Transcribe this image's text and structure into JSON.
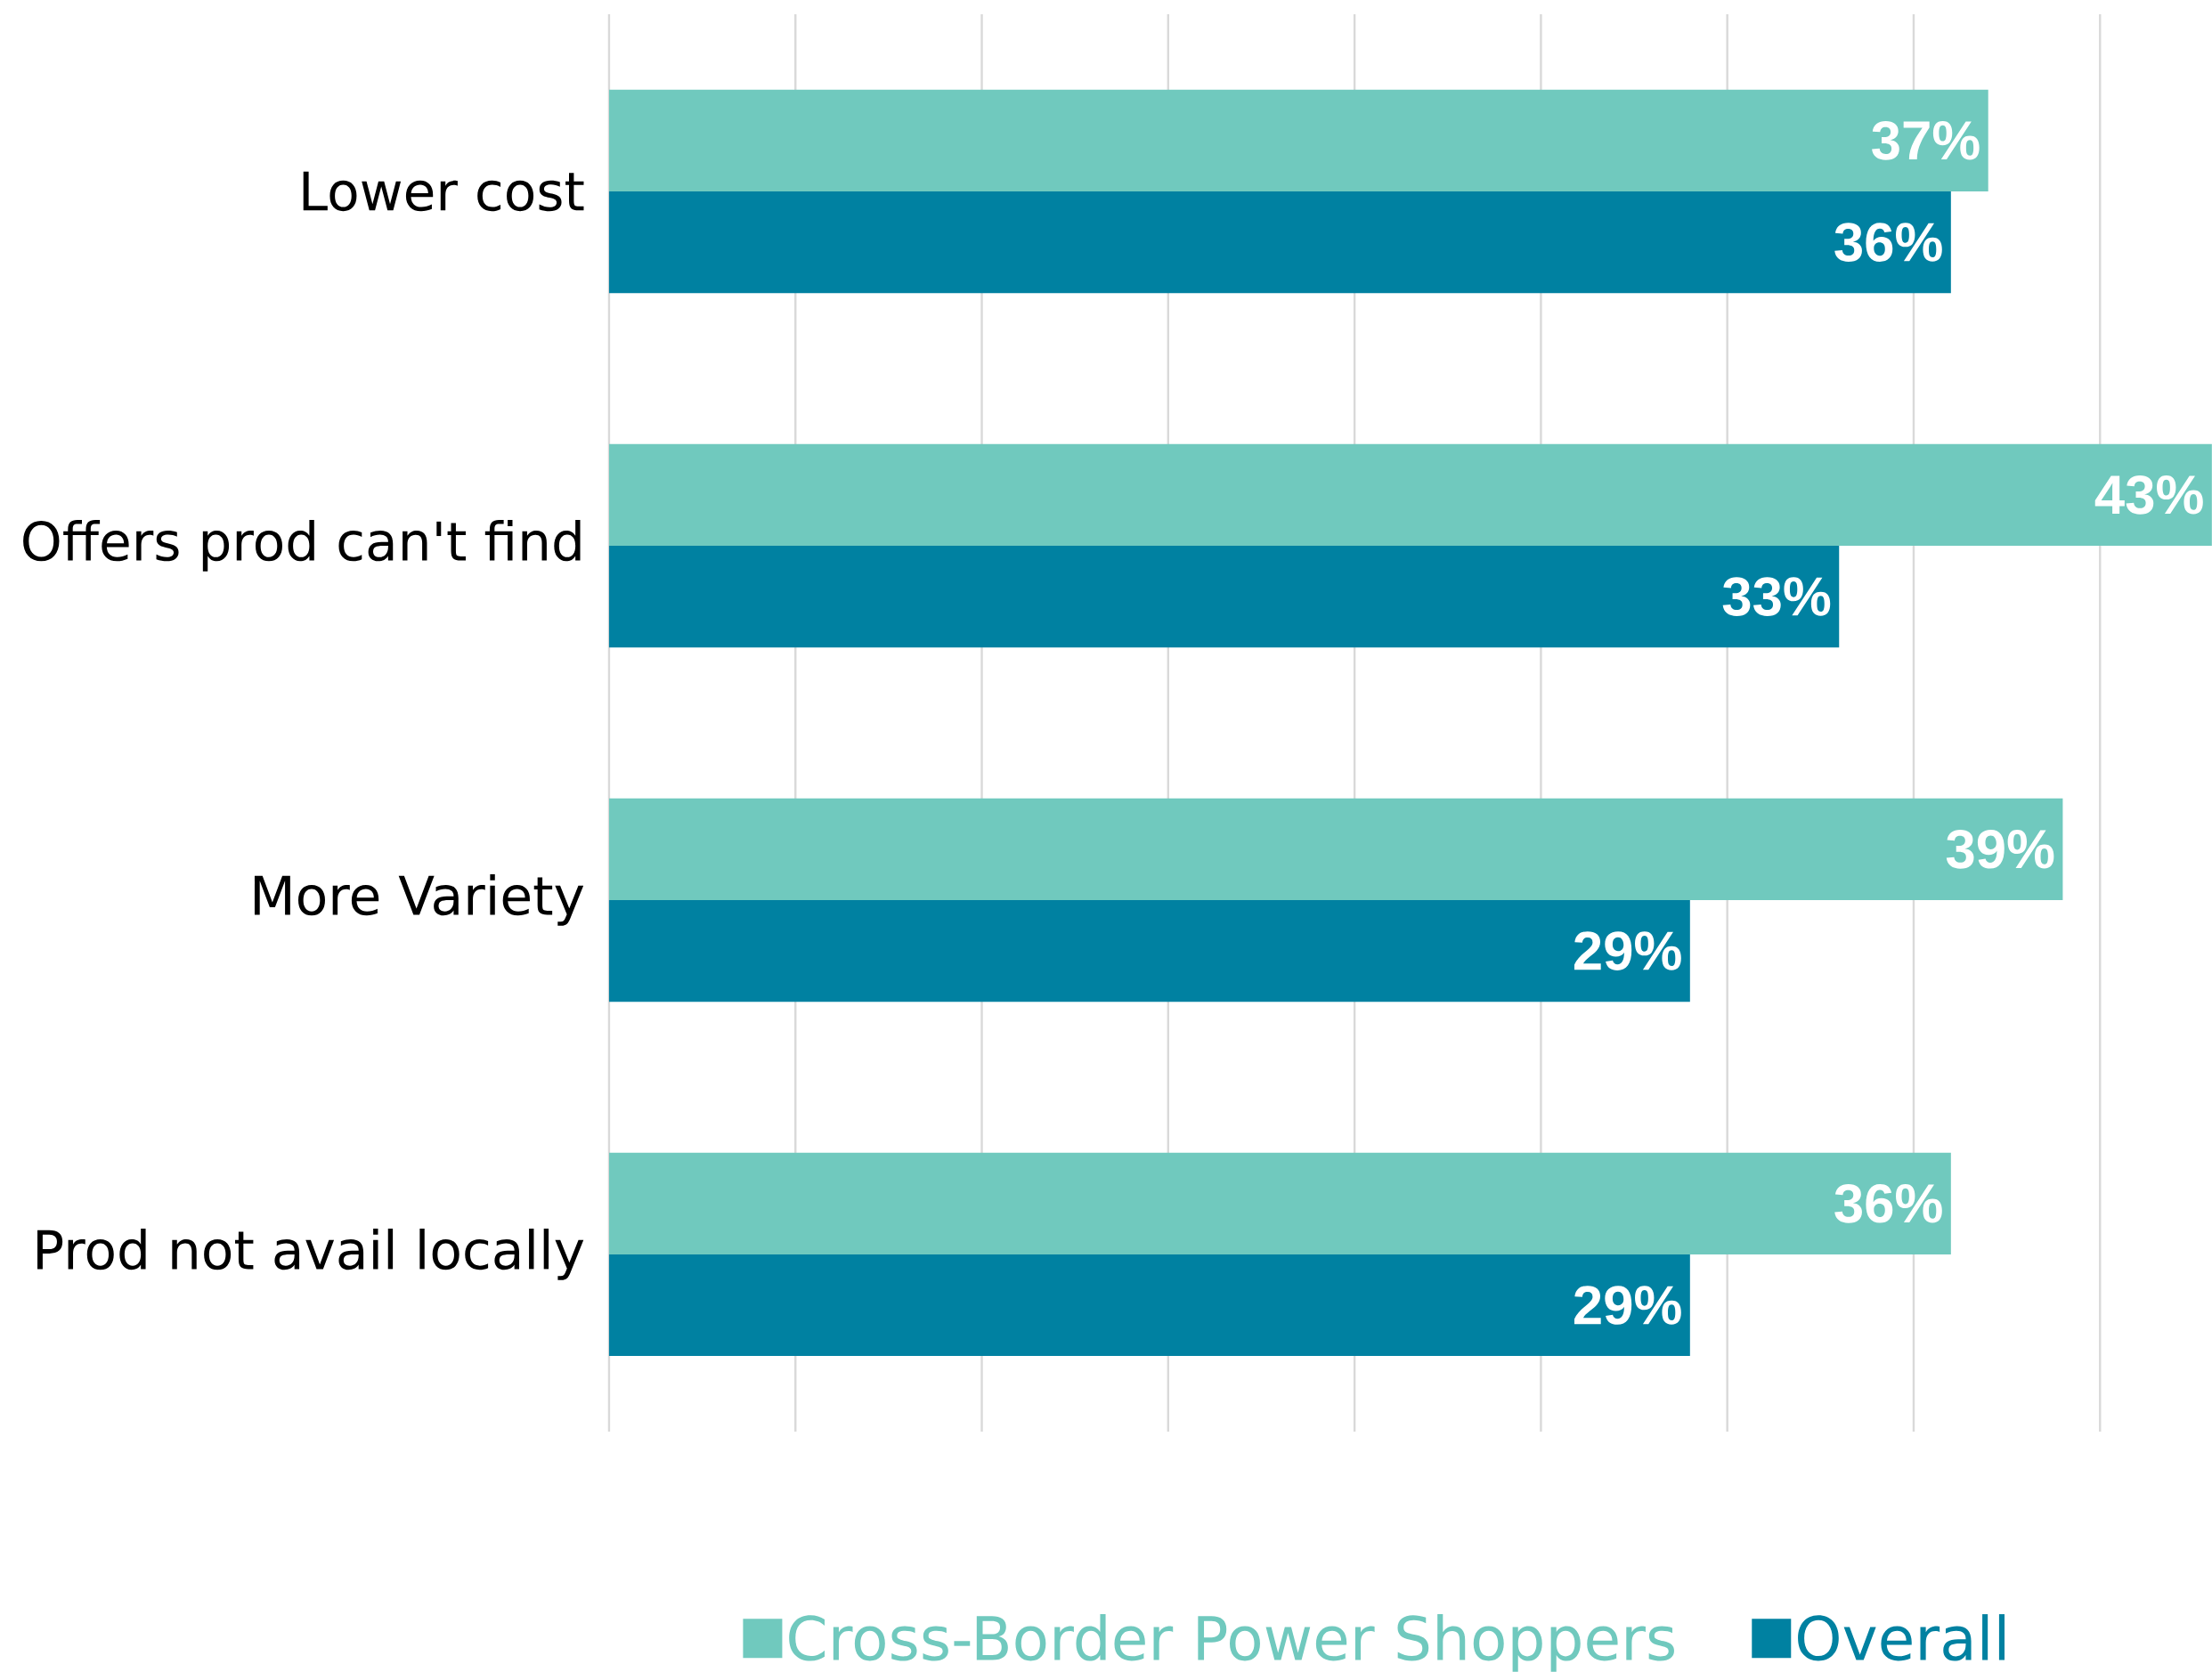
{
  "chart_data": {
    "type": "bar",
    "orientation": "horizontal",
    "categories": [
      "Lower cost",
      "Offers prod can't find",
      "More Variety",
      "Prod not avail locally"
    ],
    "series": [
      {
        "name": "Cross-Border Power Shoppers",
        "color": "#70c9be",
        "values": [
          37,
          43,
          39,
          36
        ],
        "value_labels": [
          "37%",
          "43%",
          "39%",
          "36%"
        ]
      },
      {
        "name": "Overall",
        "color": "#0081a1",
        "values": [
          36,
          33,
          29,
          29
        ],
        "value_labels": [
          "36%",
          "33%",
          "29%",
          "29%"
        ]
      }
    ],
    "xlim": [
      0,
      43
    ],
    "xticks": [
      {
        "value": 0,
        "label": null
      },
      {
        "value": 5,
        "label": null
      },
      {
        "value": 10,
        "label": null
      },
      {
        "value": 15,
        "label": null
      },
      {
        "value": 20,
        "label": null
      },
      {
        "value": 25,
        "label": null
      },
      {
        "value": 30,
        "label": null
      },
      {
        "value": 35,
        "label": null
      },
      {
        "value": 40,
        "label": null
      }
    ],
    "tick_labels": "y",
    "grid": "x",
    "legend": "bottom"
  }
}
